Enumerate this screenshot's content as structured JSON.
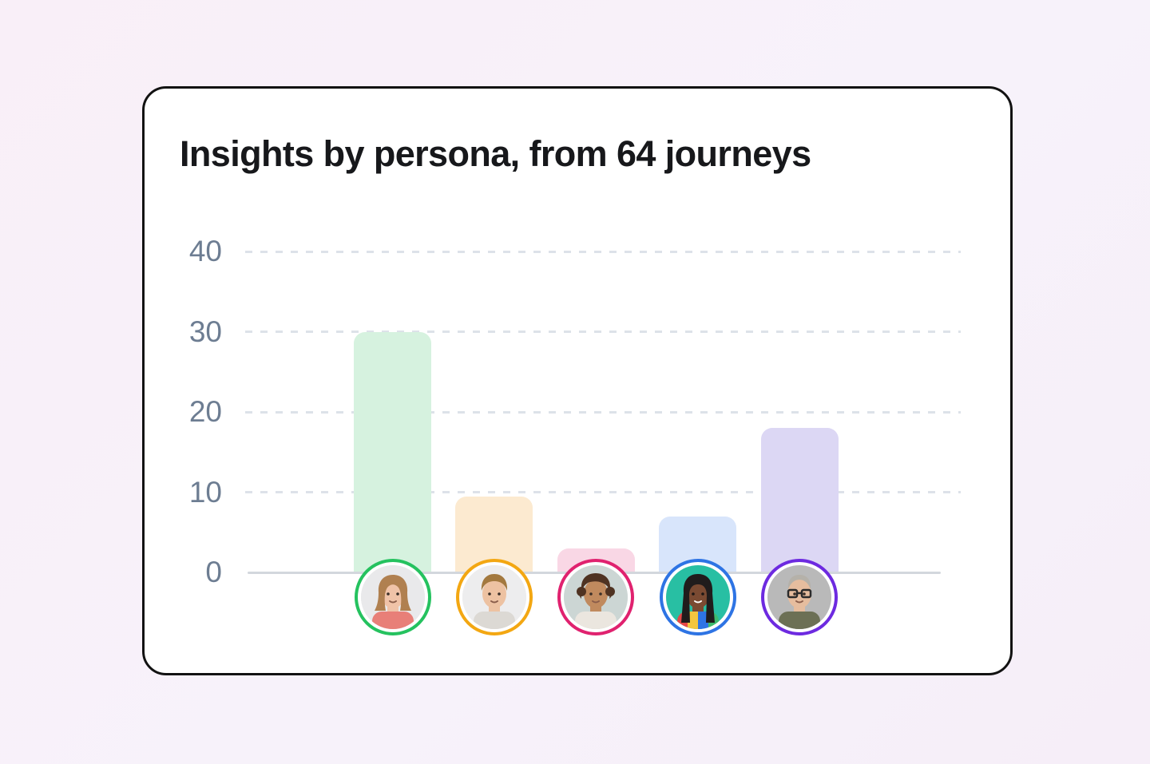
{
  "page": {
    "background_tint": "#f8f0f8"
  },
  "card": {
    "title": "Insights by persona, from 64 journeys",
    "background": "#ffffff",
    "border_color": "#121212"
  },
  "chart_data": {
    "type": "bar",
    "title": "Insights by persona, from 64 journeys",
    "xlabel": "",
    "ylabel": "",
    "ylim": [
      0,
      40
    ],
    "yticks": [
      0,
      10,
      20,
      30,
      40
    ],
    "grid": "horizontal-dashed",
    "legend": "none",
    "axis_label_color": "#6d7d92",
    "gridline_color": "#dde2e9",
    "baseline_color": "#d3d7dd",
    "categories": [
      "persona-green",
      "persona-amber",
      "persona-magenta",
      "persona-blue",
      "persona-purple"
    ],
    "values": [
      30,
      9.5,
      3,
      7,
      18
    ],
    "bar_colors": [
      "#d6f2df",
      "#fcead0",
      "#f9d7e5",
      "#d8e5fb",
      "#dcd7f4"
    ],
    "personas": [
      {
        "ring_color": "#25c25f",
        "description": "young woman with light-brown bob and coral top",
        "bg": "#e9e9eb",
        "skin": "#f0c3a8",
        "hair": "#b08050",
        "style": "bob",
        "top": "#e87f78",
        "glasses": false
      },
      {
        "ring_color": "#f3a712",
        "description": "young man with short brown hair",
        "bg": "#ededee",
        "skin": "#edc2a2",
        "hair": "#a3793f",
        "style": "short",
        "top": "#dcd9d4",
        "glasses": false
      },
      {
        "ring_color": "#e0226f",
        "description": "woman with curly brown hair and patterned top",
        "bg": "#ccd6d4",
        "skin": "#c08a5e",
        "hair": "#4f3322",
        "style": "curly",
        "top": "#ebe6df",
        "glasses": false
      },
      {
        "ring_color": "#2e74e4",
        "description": "woman with long braids on teal background, striped colorful top",
        "bg": "#28bfa3",
        "skin": "#7a4a32",
        "hair": "#201c1c",
        "style": "braids",
        "top": "#e64747",
        "top_stripes": [
          "#e64747",
          "#f2c63e",
          "#2e74e4",
          "#3dbb6e"
        ],
        "glasses": false
      },
      {
        "ring_color": "#6d2ae0",
        "description": "older man with gray hair and glasses",
        "bg": "#b9b9b9",
        "skin": "#e6bd9e",
        "hair": "#b5b1a9",
        "style": "gray",
        "top": "#6c7055",
        "glasses": true
      }
    ]
  }
}
